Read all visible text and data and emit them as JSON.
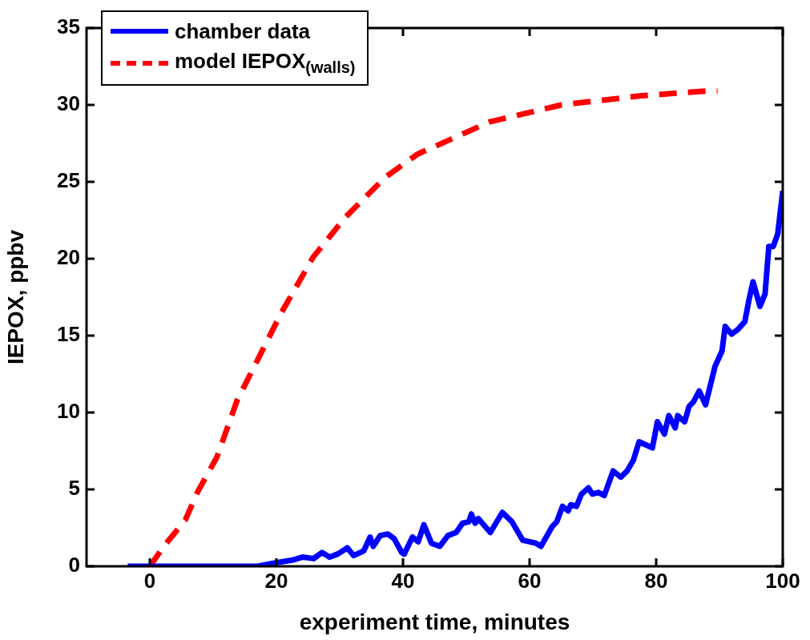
{
  "chart_data": {
    "type": "line",
    "xlabel": "experiment time, minutes",
    "ylabel": "IEPOX, ppbv",
    "xlim": [
      -10,
      100
    ],
    "ylim": [
      0,
      35
    ],
    "xticks": [
      0,
      20,
      40,
      60,
      80,
      100
    ],
    "yticks": [
      0,
      5,
      10,
      15,
      20,
      25,
      30,
      35
    ],
    "grid": false,
    "legend": "top left",
    "marker": "none",
    "series": [
      {
        "name": "chamber data",
        "color": "#0000ff",
        "line_style": "solid",
        "x": [
          -3.5,
          17,
          19.5,
          22.5,
          24.2,
          25.9,
          27.2,
          28.4,
          29.7,
          31.2,
          32.2,
          33.8,
          34.8,
          35.3,
          36.4,
          37.6,
          38.6,
          39.8,
          40.2,
          41.5,
          42.4,
          43.3,
          44.5,
          45.8,
          47.1,
          48.4,
          49.4,
          50.4,
          50.8,
          51.4,
          51.9,
          53.8,
          55.7,
          57.2,
          58.9,
          61.0,
          61.8,
          63.6,
          64.3,
          65.2,
          66.1,
          66.5,
          67.4,
          68.2,
          69.3,
          69.9,
          70.9,
          71.8,
          73.2,
          74.4,
          75.4,
          76.4,
          77.3,
          79.4,
          80.2,
          81.3,
          82.0,
          83.0,
          83.4,
          84.5,
          85.2,
          85.9,
          86.8,
          87.8,
          89.3,
          90.4,
          90.9,
          91.9,
          92.9,
          94.0,
          94.7,
          95.3,
          96.4,
          97.2,
          97.8,
          98.5,
          99.2,
          100
        ],
        "values": [
          0,
          0,
          0.2,
          0.4,
          0.6,
          0.5,
          0.9,
          0.6,
          0.8,
          1.2,
          0.7,
          1.0,
          1.9,
          1.3,
          2.0,
          2.1,
          1.8,
          0.9,
          0.8,
          1.9,
          1.6,
          2.7,
          1.5,
          1.3,
          2.0,
          2.2,
          2.8,
          2.9,
          3.4,
          2.8,
          3.1,
          2.2,
          3.5,
          2.9,
          1.7,
          1.5,
          1.3,
          2.6,
          2.9,
          3.9,
          3.6,
          4.0,
          3.9,
          4.7,
          5.1,
          4.7,
          4.8,
          4.6,
          6.2,
          5.8,
          6.2,
          6.9,
          8.1,
          7.7,
          9.4,
          8.6,
          9.8,
          9.0,
          9.8,
          9.4,
          10.4,
          10.7,
          11.4,
          10.5,
          13.0,
          14.0,
          15.6,
          15.1,
          15.4,
          15.9,
          17.4,
          18.5,
          16.9,
          17.7,
          20.8,
          20.8,
          21.6,
          24.4
        ]
      },
      {
        "name": "model IEPOX$_{(walls)}$",
        "color": "#ff0000",
        "line_style": "dashed",
        "x": [
          0,
          2.4,
          5.6,
          7.5,
          10.6,
          13.8,
          17,
          20.8,
          25.8,
          30.9,
          37.2,
          42.3,
          53.7,
          65,
          77.7,
          87.8,
          89.7
        ],
        "values": [
          0,
          1.4,
          3.0,
          4.8,
          7.1,
          10.8,
          13.4,
          16.5,
          20.1,
          22.7,
          25.3,
          26.8,
          28.9,
          30.0,
          30.6,
          30.9,
          30.9
        ]
      }
    ]
  }
}
